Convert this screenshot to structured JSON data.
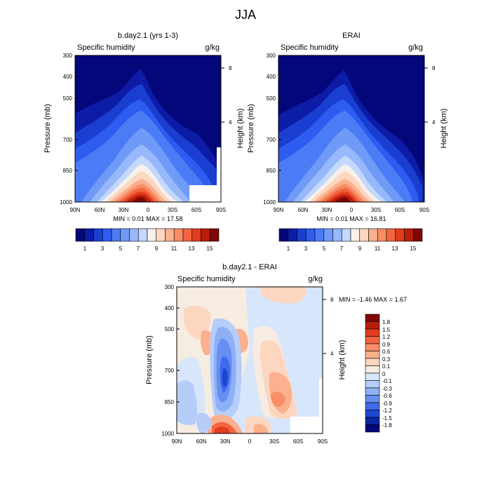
{
  "figure_title": "JJA",
  "chart_data": [
    {
      "type": "heatmap",
      "panel": "model",
      "title": "b.day2.1 (yrs 1-3)",
      "subtitle_left": "Specific humidity",
      "subtitle_right": "g/kg",
      "ylabel": "Pressure (mb)",
      "ylabel_right": "Height (km)",
      "x_ticks": [
        "90N",
        "60N",
        "30N",
        "0",
        "30S",
        "60S",
        "90S"
      ],
      "y_ticks": [
        "300",
        "400",
        "500",
        "700",
        "850",
        "1000"
      ],
      "y_ticks_right": [
        "8",
        "4"
      ],
      "min_label": "MIN =  0.01  MAX =  17.58",
      "min": 0.01,
      "max": 17.58,
      "levels": [
        1,
        2,
        3,
        4,
        5,
        6,
        7,
        8,
        9,
        10,
        11,
        12,
        13,
        14,
        15,
        16
      ],
      "colorbar_labels": [
        "1",
        "3",
        "5",
        "7",
        "9",
        "11",
        "13",
        "15"
      ]
    },
    {
      "type": "heatmap",
      "panel": "obs",
      "title": "ERAI",
      "subtitle_left": "Specific humidity",
      "subtitle_right": "g/kg",
      "ylabel": "Pressure (mb)",
      "ylabel_right": "Height (km)",
      "x_ticks": [
        "90N",
        "60N",
        "30N",
        "0",
        "30S",
        "60S",
        "90S"
      ],
      "y_ticks": [
        "300",
        "400",
        "500",
        "700",
        "850",
        "1000"
      ],
      "y_ticks_right": [
        "8",
        "4"
      ],
      "min_label": "MIN =  0.01  MAX =  16.81",
      "min": 0.01,
      "max": 16.81,
      "levels": [
        1,
        2,
        3,
        4,
        5,
        6,
        7,
        8,
        9,
        10,
        11,
        12,
        13,
        14,
        15,
        16
      ],
      "colorbar_labels": [
        "1",
        "3",
        "5",
        "7",
        "9",
        "11",
        "13",
        "15"
      ]
    },
    {
      "type": "heatmap",
      "panel": "diff",
      "title": "b.day2.1 - ERAI",
      "subtitle_left": "Specific humidity",
      "subtitle_right": "g/kg",
      "ylabel": "Pressure (mb)",
      "ylabel_right": "Height (km)",
      "x_ticks": [
        "90N",
        "60N",
        "30N",
        "0",
        "30S",
        "60S",
        "90S"
      ],
      "y_ticks": [
        "300",
        "400",
        "500",
        "700",
        "850",
        "1000"
      ],
      "y_ticks_right": [
        "8",
        "4"
      ],
      "min_label": "MIN = -1.46  MAX =  1.67",
      "min": -1.46,
      "max": 1.67,
      "levels": [
        1.8,
        1.5,
        1.2,
        0.9,
        0.6,
        0.3,
        0.1,
        0,
        -0.1,
        -0.3,
        -0.6,
        -0.9,
        -1.2,
        -1.5,
        -1.8
      ],
      "colorbar_labels": [
        "1.8",
        "1.5",
        "1.2",
        "0.9",
        "0.6",
        "0.3",
        "0.1",
        "0",
        "-0.1",
        "-0.3",
        "-0.6",
        "-0.9",
        "-1.2",
        "-1.5",
        "-1.8"
      ]
    }
  ],
  "colors": {
    "abs_scale": [
      "#03077a",
      "#0c1ca6",
      "#1a3fd0",
      "#2e5cf0",
      "#4c7cf5",
      "#6f9af8",
      "#97b8fb",
      "#c4d8fd",
      "#f7f1ea",
      "#fdd6c0",
      "#fbb08e",
      "#f88d66",
      "#f36540",
      "#e13c1e",
      "#b81d0c",
      "#800606"
    ],
    "diff_scale": [
      "#800606",
      "#b81d0c",
      "#e13c1e",
      "#f36540",
      "#f88d66",
      "#fbb08e",
      "#fdd6c0",
      "#f7ece2",
      "#d8e6fb",
      "#b6cdf9",
      "#8eb0f6",
      "#6890f2",
      "#3f6ae9",
      "#1e46d1",
      "#0a26a0",
      "#03077a"
    ]
  }
}
